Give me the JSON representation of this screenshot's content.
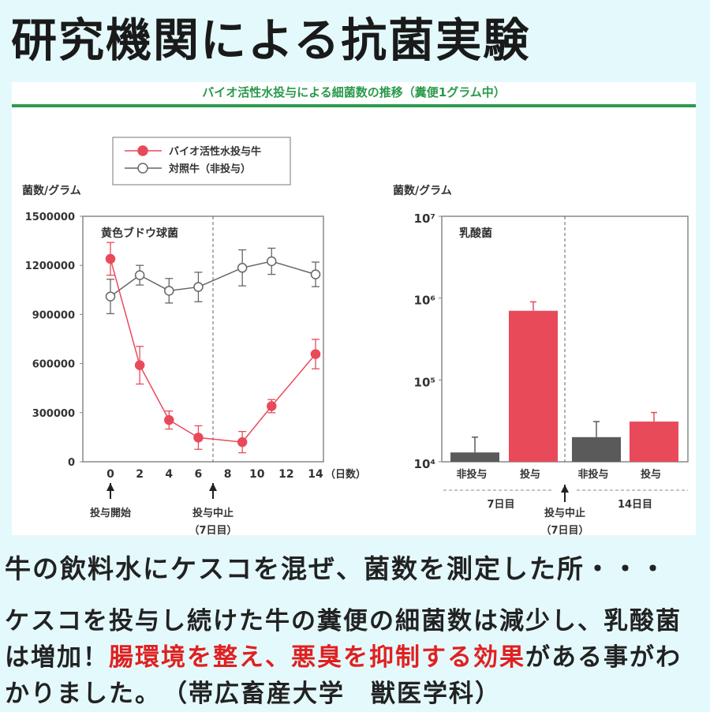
{
  "header": {
    "title": "研究機関による抗菌実験"
  },
  "panel": {
    "subtitle": "バイオ活性水投与による細菌数の推移（糞便1グラム中）"
  },
  "colors": {
    "treated": "#e84a5a",
    "control": "#666666",
    "accent_green": "#2e9a4e",
    "highlight": "#e02020",
    "background": "#e4f9fc"
  },
  "chart_data": [
    {
      "type": "line",
      "title": "黄色ブドウ球菌",
      "ylabel": "菌数/グラム",
      "xlabel": "（日数）",
      "ylim": [
        0,
        1500000
      ],
      "yticks": [
        "0",
        "300000",
        "600000",
        "900000",
        "1200000",
        "1500000"
      ],
      "xticks": [
        "0",
        "2",
        "4",
        "6",
        "8",
        "10",
        "12",
        "14"
      ],
      "grid": false,
      "legend": "top",
      "series": [
        {
          "name": "バイオ活性水投与牛",
          "marker": "filled",
          "x": [
            0,
            2,
            4,
            6,
            9,
            11,
            14
          ],
          "y": [
            1240000,
            590000,
            255000,
            148000,
            120000,
            340000,
            658000
          ],
          "err": [
            100000,
            115000,
            55000,
            72000,
            65000,
            40000,
            90000
          ]
        },
        {
          "name": "対照牛（非投与）",
          "marker": "open",
          "x": [
            0,
            2,
            4,
            6,
            9,
            11,
            14
          ],
          "y": [
            1010000,
            1140000,
            1045000,
            1068000,
            1185000,
            1225000,
            1145000
          ],
          "err": [
            105000,
            60000,
            75000,
            90000,
            110000,
            80000,
            75000
          ]
        }
      ],
      "annotations": [
        {
          "label": "投与開始",
          "x": 0
        },
        {
          "label": "投与中止",
          "sub": "（7日目）",
          "x": 7
        }
      ]
    },
    {
      "type": "bar",
      "title": "乳酸菌",
      "ylabel": "菌数/グラム",
      "yscale": "log",
      "ylim": [
        10000,
        10000000
      ],
      "yticks": [
        "10⁴",
        "10⁵",
        "10⁶",
        "10⁷"
      ],
      "categories": [
        "非投与",
        "投与",
        "非投与",
        "投与"
      ],
      "groups": [
        "7日目",
        "14日目"
      ],
      "values": [
        13000,
        700000,
        20000,
        31000
      ],
      "err_top": [
        20000,
        900000,
        31000,
        40000
      ],
      "annotation": {
        "label": "投与中止",
        "sub": "（7日目）"
      }
    }
  ],
  "text": {
    "line1": "牛の飲料水にケスコを混ぜ、菌数を測定した所・・・",
    "p_a": "ケスコを投与し続けた牛の糞便の細菌数は減少し、乳酸菌は増加！",
    "p_red": "腸環境を整え、悪臭を抑制する効果",
    "p_b": "がある事がわかりました。　（帯広畜産大学　獣医学科）"
  }
}
